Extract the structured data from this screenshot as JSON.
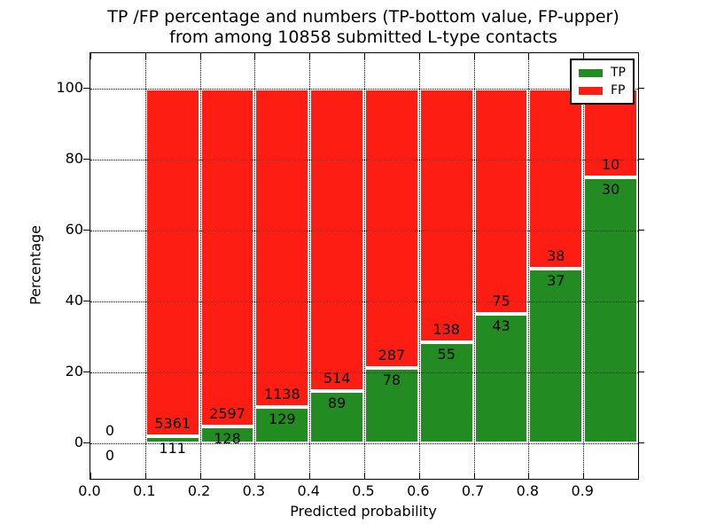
{
  "figure": {
    "title_line1": "TP /FP percentage and numbers (TP-bottom value, FP-upper)",
    "title_line2": "from among 10858 submitted L-type contacts",
    "xlabel": "Predicted probability",
    "ylabel": "Percentage"
  },
  "legend": {
    "items": [
      {
        "label": "TP",
        "color": "#228b22"
      },
      {
        "label": "FP",
        "color": "#fe1d13"
      }
    ]
  },
  "axes": {
    "x_tick_labels": [
      "0.0",
      "0.1",
      "0.2",
      "0.3",
      "0.4",
      "0.5",
      "0.6",
      "0.7",
      "0.8",
      "0.9"
    ],
    "y_tick_labels": [
      "0",
      "20",
      "40",
      "60",
      "80",
      "100"
    ],
    "xlim": [
      0.0,
      1.0
    ],
    "ylim": [
      -10,
      110
    ],
    "grid_style": "dotted",
    "grid_color": "#000000"
  },
  "chart_data": {
    "type": "bar",
    "stacked": true,
    "orientation": "vertical",
    "title": "TP /FP percentage and numbers (TP-bottom value, FP-upper) from among 10858 submitted L-type contacts",
    "xlabel": "Predicted probability",
    "ylabel": "Percentage",
    "total_submitted": 10858,
    "x_bins": [
      [
        0.0,
        0.1
      ],
      [
        0.1,
        0.2
      ],
      [
        0.2,
        0.3
      ],
      [
        0.3,
        0.4
      ],
      [
        0.4,
        0.5
      ],
      [
        0.5,
        0.6
      ],
      [
        0.6,
        0.7
      ],
      [
        0.7,
        0.8
      ],
      [
        0.8,
        0.9
      ],
      [
        0.9,
        1.0
      ]
    ],
    "series": [
      {
        "name": "TP",
        "color": "#228b22",
        "counts": [
          0,
          111,
          128,
          129,
          89,
          78,
          55,
          43,
          37,
          30
        ],
        "pct": [
          0,
          2.03,
          4.7,
          10.18,
          14.76,
          21.37,
          28.5,
          36.44,
          49.33,
          75.0
        ]
      },
      {
        "name": "FP",
        "color": "#fe1d13",
        "counts": [
          0,
          5361,
          2597,
          1138,
          514,
          287,
          138,
          75,
          38,
          10
        ],
        "pct": [
          0,
          97.97,
          95.3,
          89.82,
          85.24,
          78.63,
          71.5,
          63.56,
          50.67,
          25.0
        ]
      }
    ],
    "bar_edge_color": "#ffffff",
    "legend_position": "upper right",
    "ylim": [
      -10,
      110
    ],
    "xlim": [
      0.0,
      1.0
    ]
  }
}
